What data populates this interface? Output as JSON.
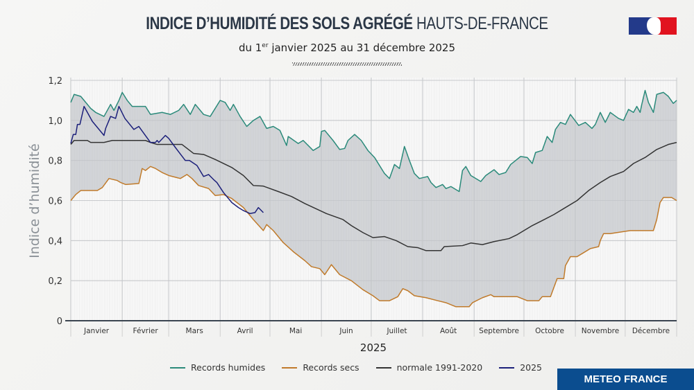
{
  "header": {
    "title_bold": "INDICE D’HUMIDITÉ DES SOLS AGRÉGÉ",
    "title_light": "HAUTS-DE-FRANCE",
    "subtitle_pre": "du 1",
    "subtitle_sup": "er",
    "subtitle_post": " janvier 2025 au 31 décembre 2025",
    "logo": "Marianne république française"
  },
  "brand": {
    "label": "METEO FRANCE",
    "color": "#0b4d8f"
  },
  "chart_data": {
    "type": "line",
    "xlabel": "2025",
    "ylabel": "Indice d’humidité",
    "x_unit": "day of year 2025",
    "xlim": [
      0,
      365
    ],
    "ylim": [
      0,
      1.2
    ],
    "yticks": [
      "0",
      "0,2",
      "0,4",
      "0,6",
      "0,8",
      "1,0",
      "1,2"
    ],
    "ytick_values": [
      0,
      0.2,
      0.4,
      0.6,
      0.8,
      1.0,
      1.2
    ],
    "months": [
      "Janvier",
      "Février",
      "Mars",
      "Avril",
      "Mai",
      "Juin",
      "Juillet",
      "Août",
      "Septembre",
      "Octobre",
      "Novembre",
      "Décembre"
    ],
    "month_starts": [
      0,
      31,
      59,
      90,
      120,
      151,
      181,
      212,
      243,
      273,
      304,
      334,
      365
    ],
    "grid": true,
    "legend_position": "bottom",
    "band_fill": "#d5d7da",
    "series": [
      {
        "name": "Records humides",
        "color": "#2a8a7a",
        "points": [
          [
            0,
            1.09
          ],
          [
            2,
            1.13
          ],
          [
            6,
            1.12
          ],
          [
            12,
            1.06
          ],
          [
            15,
            1.04
          ],
          [
            20,
            1.02
          ],
          [
            24,
            1.08
          ],
          [
            26,
            1.05
          ],
          [
            29,
            1.1
          ],
          [
            31,
            1.14
          ],
          [
            34,
            1.1
          ],
          [
            37,
            1.07
          ],
          [
            45,
            1.07
          ],
          [
            48,
            1.03
          ],
          [
            55,
            1.04
          ],
          [
            60,
            1.03
          ],
          [
            65,
            1.05
          ],
          [
            68,
            1.08
          ],
          [
            72,
            1.03
          ],
          [
            75,
            1.08
          ],
          [
            80,
            1.03
          ],
          [
            84,
            1.02
          ],
          [
            90,
            1.1
          ],
          [
            93,
            1.09
          ],
          [
            96,
            1.05
          ],
          [
            98,
            1.08
          ],
          [
            102,
            1.02
          ],
          [
            106,
            0.97
          ],
          [
            110,
            1.0
          ],
          [
            114,
            1.02
          ],
          [
            118,
            0.96
          ],
          [
            122,
            0.97
          ],
          [
            126,
            0.95
          ],
          [
            130,
            0.875
          ],
          [
            131,
            0.92
          ],
          [
            137,
            0.885
          ],
          [
            140,
            0.9
          ],
          [
            146,
            0.85
          ],
          [
            150,
            0.87
          ],
          [
            151,
            0.945
          ],
          [
            153,
            0.95
          ],
          [
            158,
            0.9
          ],
          [
            162,
            0.855
          ],
          [
            165,
            0.86
          ],
          [
            167,
            0.9
          ],
          [
            171,
            0.93
          ],
          [
            175,
            0.9
          ],
          [
            179,
            0.85
          ],
          [
            183,
            0.815
          ],
          [
            189,
            0.735
          ],
          [
            192,
            0.71
          ],
          [
            195,
            0.78
          ],
          [
            198,
            0.76
          ],
          [
            201,
            0.87
          ],
          [
            204,
            0.8
          ],
          [
            207,
            0.735
          ],
          [
            210,
            0.71
          ],
          [
            215,
            0.72
          ],
          [
            217,
            0.69
          ],
          [
            220,
            0.665
          ],
          [
            224,
            0.68
          ],
          [
            226,
            0.66
          ],
          [
            229,
            0.67
          ],
          [
            234,
            0.645
          ],
          [
            236,
            0.75
          ],
          [
            238,
            0.77
          ],
          [
            241,
            0.725
          ],
          [
            247,
            0.695
          ],
          [
            250,
            0.725
          ],
          [
            255,
            0.754
          ],
          [
            258,
            0.73
          ],
          [
            262,
            0.74
          ],
          [
            265,
            0.78
          ],
          [
            268,
            0.8
          ],
          [
            271,
            0.82
          ],
          [
            275,
            0.815
          ],
          [
            278,
            0.785
          ],
          [
            280,
            0.84
          ],
          [
            284,
            0.85
          ],
          [
            287,
            0.92
          ],
          [
            290,
            0.89
          ],
          [
            292,
            0.955
          ],
          [
            295,
            0.99
          ],
          [
            298,
            0.98
          ],
          [
            301,
            1.03
          ],
          [
            306,
            0.975
          ],
          [
            310,
            0.99
          ],
          [
            314,
            0.96
          ],
          [
            316,
            0.98
          ],
          [
            319,
            1.04
          ],
          [
            322,
            0.99
          ],
          [
            325,
            1.04
          ],
          [
            330,
            1.01
          ],
          [
            333,
            1.0
          ],
          [
            336,
            1.055
          ],
          [
            339,
            1.04
          ],
          [
            341,
            1.07
          ],
          [
            343,
            1.04
          ],
          [
            344,
            1.08
          ],
          [
            346,
            1.15
          ],
          [
            348,
            1.09
          ],
          [
            351,
            1.04
          ],
          [
            353,
            1.13
          ],
          [
            357,
            1.14
          ],
          [
            360,
            1.12
          ],
          [
            363,
            1.085
          ],
          [
            365,
            1.1
          ]
        ]
      },
      {
        "name": "Records secs",
        "color": "#c07a2a",
        "points": [
          [
            0,
            0.6
          ],
          [
            3,
            0.63
          ],
          [
            6,
            0.65
          ],
          [
            16,
            0.65
          ],
          [
            19,
            0.665
          ],
          [
            23,
            0.71
          ],
          [
            28,
            0.7
          ],
          [
            30,
            0.69
          ],
          [
            33,
            0.68
          ],
          [
            41,
            0.685
          ],
          [
            43,
            0.76
          ],
          [
            45,
            0.75
          ],
          [
            48,
            0.77
          ],
          [
            51,
            0.76
          ],
          [
            55,
            0.74
          ],
          [
            59,
            0.725
          ],
          [
            66,
            0.71
          ],
          [
            70,
            0.73
          ],
          [
            73,
            0.71
          ],
          [
            77,
            0.675
          ],
          [
            83,
            0.66
          ],
          [
            87,
            0.625
          ],
          [
            92,
            0.63
          ],
          [
            97,
            0.61
          ],
          [
            104,
            0.565
          ],
          [
            110,
            0.505
          ],
          [
            116,
            0.45
          ],
          [
            118,
            0.48
          ],
          [
            122,
            0.45
          ],
          [
            128,
            0.39
          ],
          [
            134,
            0.345
          ],
          [
            141,
            0.3
          ],
          [
            145,
            0.27
          ],
          [
            150,
            0.26
          ],
          [
            153,
            0.23
          ],
          [
            157,
            0.28
          ],
          [
            162,
            0.23
          ],
          [
            169,
            0.2
          ],
          [
            176,
            0.155
          ],
          [
            182,
            0.125
          ],
          [
            186,
            0.1
          ],
          [
            192,
            0.1
          ],
          [
            197,
            0.12
          ],
          [
            200,
            0.16
          ],
          [
            203,
            0.15
          ],
          [
            207,
            0.125
          ],
          [
            214,
            0.115
          ],
          [
            221,
            0.1
          ],
          [
            226,
            0.09
          ],
          [
            232,
            0.07
          ],
          [
            240,
            0.07
          ],
          [
            242,
            0.09
          ],
          [
            248,
            0.115
          ],
          [
            253,
            0.13
          ],
          [
            255,
            0.12
          ],
          [
            269,
            0.12
          ],
          [
            275,
            0.1
          ],
          [
            282,
            0.1
          ],
          [
            284,
            0.12
          ],
          [
            289,
            0.12
          ],
          [
            293,
            0.21
          ],
          [
            297,
            0.21
          ],
          [
            298,
            0.275
          ],
          [
            301,
            0.32
          ],
          [
            305,
            0.32
          ],
          [
            309,
            0.34
          ],
          [
            313,
            0.36
          ],
          [
            318,
            0.37
          ],
          [
            319,
            0.4
          ],
          [
            321,
            0.435
          ],
          [
            325,
            0.435
          ],
          [
            329,
            0.44
          ],
          [
            337,
            0.45
          ],
          [
            351,
            0.45
          ],
          [
            353,
            0.505
          ],
          [
            355,
            0.59
          ],
          [
            357,
            0.615
          ],
          [
            362,
            0.615
          ],
          [
            365,
            0.6
          ]
        ]
      },
      {
        "name": "normale 1991-2020",
        "color": "#333333",
        "points": [
          [
            0,
            0.88
          ],
          [
            2,
            0.9
          ],
          [
            10,
            0.9
          ],
          [
            12,
            0.89
          ],
          [
            20,
            0.89
          ],
          [
            25,
            0.9
          ],
          [
            45,
            0.9
          ],
          [
            48,
            0.89
          ],
          [
            52,
            0.88
          ],
          [
            67,
            0.88
          ],
          [
            74,
            0.835
          ],
          [
            80,
            0.83
          ],
          [
            87,
            0.805
          ],
          [
            97,
            0.765
          ],
          [
            104,
            0.725
          ],
          [
            110,
            0.675
          ],
          [
            116,
            0.672
          ],
          [
            125,
            0.645
          ],
          [
            133,
            0.62
          ],
          [
            141,
            0.585
          ],
          [
            154,
            0.535
          ],
          [
            164,
            0.505
          ],
          [
            169,
            0.475
          ],
          [
            176,
            0.44
          ],
          [
            182,
            0.415
          ],
          [
            189,
            0.42
          ],
          [
            196,
            0.4
          ],
          [
            203,
            0.37
          ],
          [
            209,
            0.365
          ],
          [
            214,
            0.35
          ],
          [
            223,
            0.35
          ],
          [
            225,
            0.37
          ],
          [
            236,
            0.375
          ],
          [
            241,
            0.388
          ],
          [
            248,
            0.38
          ],
          [
            255,
            0.395
          ],
          [
            264,
            0.41
          ],
          [
            269,
            0.43
          ],
          [
            278,
            0.475
          ],
          [
            284,
            0.5
          ],
          [
            291,
            0.53
          ],
          [
            297,
            0.56
          ],
          [
            305,
            0.6
          ],
          [
            312,
            0.65
          ],
          [
            319,
            0.69
          ],
          [
            325,
            0.72
          ],
          [
            333,
            0.745
          ],
          [
            339,
            0.785
          ],
          [
            346,
            0.815
          ],
          [
            353,
            0.855
          ],
          [
            360,
            0.88
          ],
          [
            365,
            0.89
          ]
        ]
      },
      {
        "name": "2025",
        "color": "#1b1f7a",
        "points": [
          [
            0,
            0.885
          ],
          [
            1.5,
            0.93
          ],
          [
            3,
            0.93
          ],
          [
            4,
            0.98
          ],
          [
            5.5,
            0.98
          ],
          [
            8,
            1.07
          ],
          [
            10,
            1.04
          ],
          [
            13,
            0.995
          ],
          [
            20,
            0.925
          ],
          [
            21,
            0.96
          ],
          [
            24,
            1.02
          ],
          [
            27,
            1.01
          ],
          [
            29,
            1.07
          ],
          [
            32.6,
            1.01
          ],
          [
            38,
            0.955
          ],
          [
            41,
            0.97
          ],
          [
            48,
            0.89
          ],
          [
            51,
            0.89
          ],
          [
            52,
            0.9
          ],
          [
            53,
            0.89
          ],
          [
            57,
            0.925
          ],
          [
            59,
            0.91
          ],
          [
            63,
            0.865
          ],
          [
            69,
            0.8
          ],
          [
            71.5,
            0.8
          ],
          [
            76,
            0.775
          ],
          [
            80,
            0.72
          ],
          [
            83,
            0.73
          ],
          [
            86,
            0.705
          ],
          [
            88,
            0.69
          ],
          [
            92,
            0.64
          ],
          [
            97,
            0.59
          ],
          [
            101,
            0.565
          ],
          [
            104,
            0.55
          ],
          [
            108,
            0.535
          ],
          [
            111,
            0.54
          ],
          [
            113,
            0.565
          ],
          [
            116,
            0.54
          ]
        ]
      }
    ]
  }
}
